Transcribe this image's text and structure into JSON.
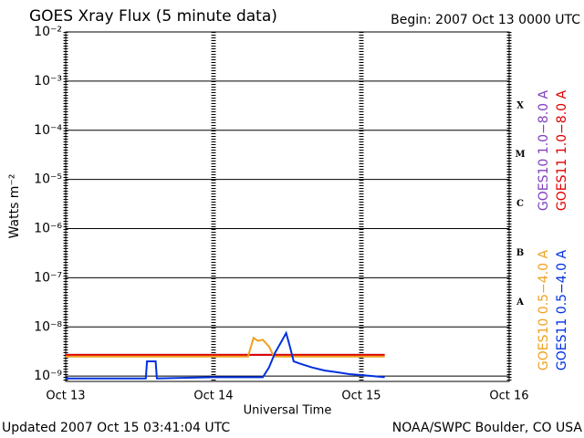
{
  "chart_data": {
    "type": "line",
    "title": "GOES Xray Flux (5 minute data)",
    "subtitle": "Begin:  2007 Oct 13 0000 UTC",
    "x_label": "Universal Time",
    "y_label": "Watts m⁻²",
    "footer_left": "Updated 2007 Oct 15 03:41:04 UTC",
    "footer_right": "NOAA/SWPC Boulder, CO USA",
    "log_y": true,
    "grid": true,
    "xlim": [
      0,
      72
    ],
    "xticks": [
      {
        "value": 0,
        "label": "Oct 13"
      },
      {
        "value": 24,
        "label": "Oct 14"
      },
      {
        "value": 48,
        "label": "Oct 15"
      },
      {
        "value": 72,
        "label": "Oct 16"
      }
    ],
    "ylim": [
      7.8e-10,
      0.01
    ],
    "yticks": [
      {
        "value": 0.01,
        "label": "10⁻²"
      },
      {
        "value": 0.001,
        "label": "10⁻³"
      },
      {
        "value": 0.0001,
        "label": "10⁻⁴"
      },
      {
        "value": 1e-05,
        "label": "10⁻⁵"
      },
      {
        "value": 1e-06,
        "label": "10⁻⁶"
      },
      {
        "value": 1e-07,
        "label": "10⁻⁷"
      },
      {
        "value": 1e-08,
        "label": "10⁻⁸"
      },
      {
        "value": 1e-09,
        "label": "10⁻⁹"
      }
    ],
    "flare_classes": [
      "X",
      "M",
      "C",
      "B",
      "A"
    ],
    "series": [
      {
        "name": "GOES10 1.0−8.0 A",
        "color": "#7f3fbf",
        "x": [
          0,
          51.8
        ],
        "values": [
          2.7e-09,
          2.7e-09
        ]
      },
      {
        "name": "GOES11 1.0−8.0 A",
        "color": "#e00000",
        "x": [
          0,
          51.8
        ],
        "values": [
          2.7e-09,
          2.7e-09
        ]
      },
      {
        "name": "GOES10 0.5−4.0 A",
        "color": "#f0a020",
        "x": [
          0,
          29.6,
          30.5,
          31.2,
          32,
          33,
          33.8,
          51.8
        ],
        "values": [
          2.5e-09,
          2.5e-09,
          6e-09,
          5.2e-09,
          5.5e-09,
          4e-09,
          2.5e-09,
          2.5e-09
        ]
      },
      {
        "name": "GOES11 0.5−4.0 A",
        "color": "#0030e0",
        "x": [
          0,
          13,
          13.2,
          14.6,
          14.8,
          24,
          32,
          33,
          34,
          35,
          35.8,
          36.4,
          37,
          38,
          40,
          42,
          44,
          46,
          48,
          51.8
        ],
        "values": [
          9e-10,
          9e-10,
          2e-09,
          2e-09,
          9e-10,
          9.5e-10,
          9.5e-10,
          1.5e-09,
          3e-09,
          5e-09,
          7.5e-09,
          4e-09,
          2e-09,
          1.8e-09,
          1.5e-09,
          1.3e-09,
          1.2e-09,
          1.1e-09,
          1.05e-09,
          9.5e-10
        ]
      }
    ]
  }
}
